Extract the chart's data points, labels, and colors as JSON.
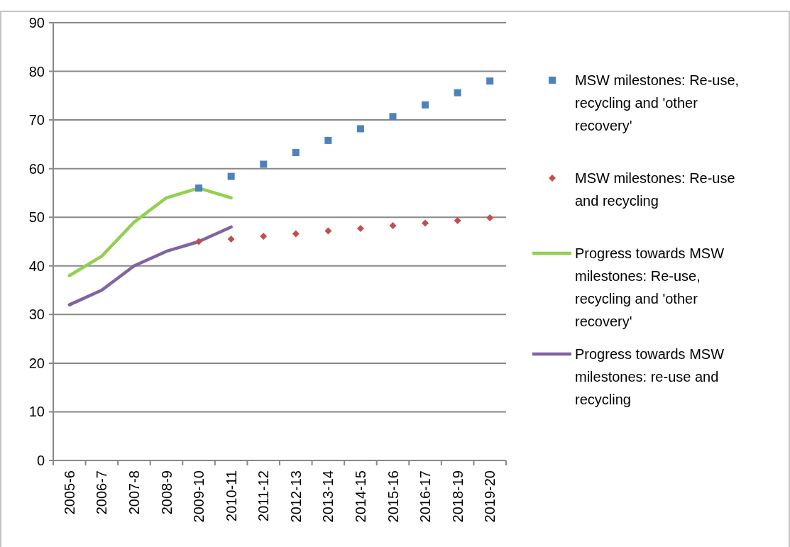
{
  "chart_data": {
    "type": "line",
    "categories": [
      "2005-6",
      "2006-7",
      "2007-8",
      "2008-9",
      "2009-10",
      "2010-11",
      "2011-12",
      "2012-13",
      "2013-14",
      "2014-15",
      "2015-16",
      "2016-17",
      "2018-19",
      "2019-20"
    ],
    "series": [
      {
        "name": "MSW milestones: Re-use, recycling and 'other recovery'",
        "type": "scatter",
        "marker": "square",
        "color": "#4f81bd",
        "values": [
          null,
          null,
          null,
          null,
          56,
          58.4,
          60.9,
          63.3,
          65.8,
          68.2,
          70.7,
          73.1,
          75.6,
          78.0
        ]
      },
      {
        "name": "MSW milestones: Re-use and recycling",
        "type": "scatter",
        "marker": "diamond",
        "color": "#c0504d",
        "values": [
          null,
          null,
          null,
          null,
          45,
          45.5,
          46.1,
          46.6,
          47.2,
          47.7,
          48.3,
          48.8,
          49.3,
          49.9
        ]
      },
      {
        "name": "Progress towards MSW milestones: Re-use, recycling and 'other recovery'",
        "color": "#92d050",
        "values": [
          38,
          42,
          49,
          54,
          56,
          54,
          null,
          null,
          null,
          null,
          null,
          null,
          null,
          null
        ]
      },
      {
        "name": "Progress towards MSW milestones: re-use and recycling",
        "color": "#8064a2",
        "values": [
          32,
          35,
          40,
          43,
          45,
          48,
          null,
          null,
          null,
          null,
          null,
          null,
          null,
          null
        ]
      }
    ],
    "ylim": [
      0,
      90
    ],
    "yticks": [
      0,
      10,
      20,
      30,
      40,
      50,
      60,
      70,
      80,
      90
    ],
    "grid": "y",
    "legend": "right"
  }
}
